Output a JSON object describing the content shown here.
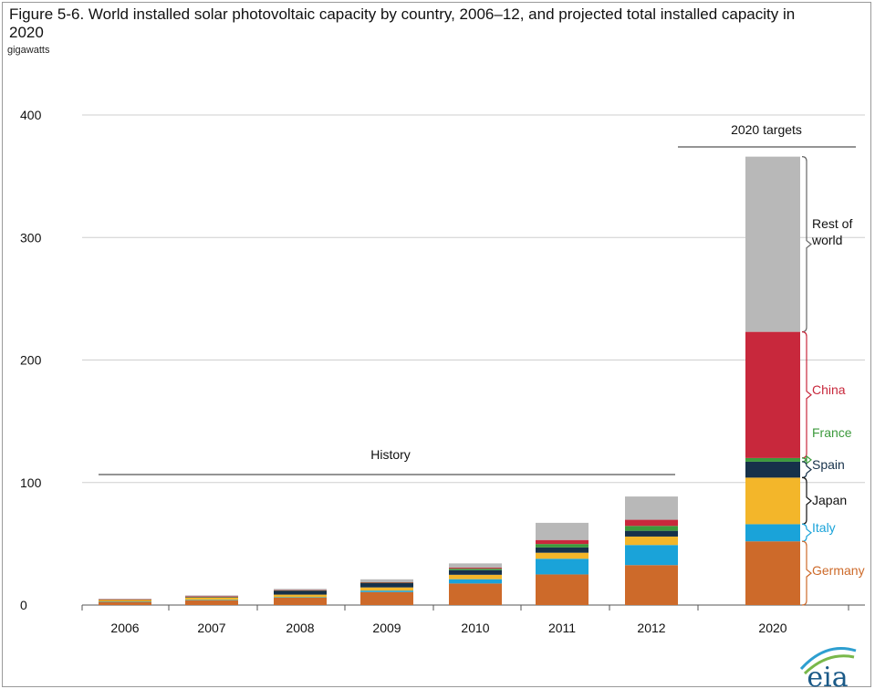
{
  "figure": {
    "title": "Figure 5-6. World installed solar photovoltaic capacity by country, 2006–12, and projected total installed capacity in 2020",
    "unit_label": "gigawatts"
  },
  "chart_data": {
    "type": "bar",
    "stacked": true,
    "title": "Figure 5-6. World installed solar photovoltaic capacity by country, 2006–12, and projected total installed capacity in 2020",
    "ylabel": "gigawatts",
    "ylim": [
      0,
      400
    ],
    "yticks": [
      0,
      100,
      200,
      300,
      400
    ],
    "grid": true,
    "categories": [
      "2006",
      "2007",
      "2008",
      "2009",
      "2010",
      "2011",
      "2012",
      "2020"
    ],
    "series": [
      {
        "name": "Germany",
        "color": "#cd6a2a",
        "values": [
          2.8,
          4.1,
          6.0,
          10.6,
          17.6,
          25.0,
          32.6,
          52.0
        ]
      },
      {
        "name": "Italy",
        "color": "#1aa3d9",
        "values": [
          0.1,
          0.1,
          0.4,
          1.2,
          3.5,
          12.8,
          16.4,
          14.0
        ]
      },
      {
        "name": "Japan",
        "color": "#f3b62a",
        "values": [
          1.6,
          2.0,
          2.1,
          2.6,
          3.6,
          4.9,
          6.9,
          38.0
        ]
      },
      {
        "name": "Spain",
        "color": "#16314a",
        "values": [
          0.2,
          0.7,
          3.4,
          3.6,
          3.8,
          4.3,
          4.7,
          13.0
        ]
      },
      {
        "name": "France",
        "color": "#3c9a3c",
        "values": [
          0.0,
          0.1,
          0.1,
          0.3,
          1.2,
          2.8,
          4.0,
          3.0
        ]
      },
      {
        "name": "China",
        "color": "#c8283c",
        "values": [
          0.1,
          0.1,
          0.2,
          0.3,
          0.8,
          3.3,
          5.0,
          103.0
        ]
      },
      {
        "name": "Rest of world",
        "color": "#b8b8b8",
        "values": [
          0.3,
          0.8,
          1.0,
          2.4,
          3.5,
          14.0,
          19.0,
          143.0
        ]
      }
    ],
    "legend_labels": [
      {
        "text": "Rest of world",
        "series": "Rest of world",
        "color": "#111111"
      },
      {
        "text": "China",
        "series": "China",
        "color": "#c8283c"
      },
      {
        "text": "France",
        "series": "France",
        "color": "#3c9a3c"
      },
      {
        "text": "Spain",
        "series": "Spain",
        "color": "#16314a"
      },
      {
        "text": "Japan",
        "series": "Japan",
        "color": "#111111"
      },
      {
        "text": "Italy",
        "series": "Italy",
        "color": "#1aa3d9"
      },
      {
        "text": "Germany",
        "series": "Germany",
        "color": "#cd6a2a"
      }
    ],
    "annotations": {
      "history": "History",
      "targets": "2020 targets"
    }
  },
  "logo": {
    "text": "eia",
    "name": "eia-logo"
  }
}
